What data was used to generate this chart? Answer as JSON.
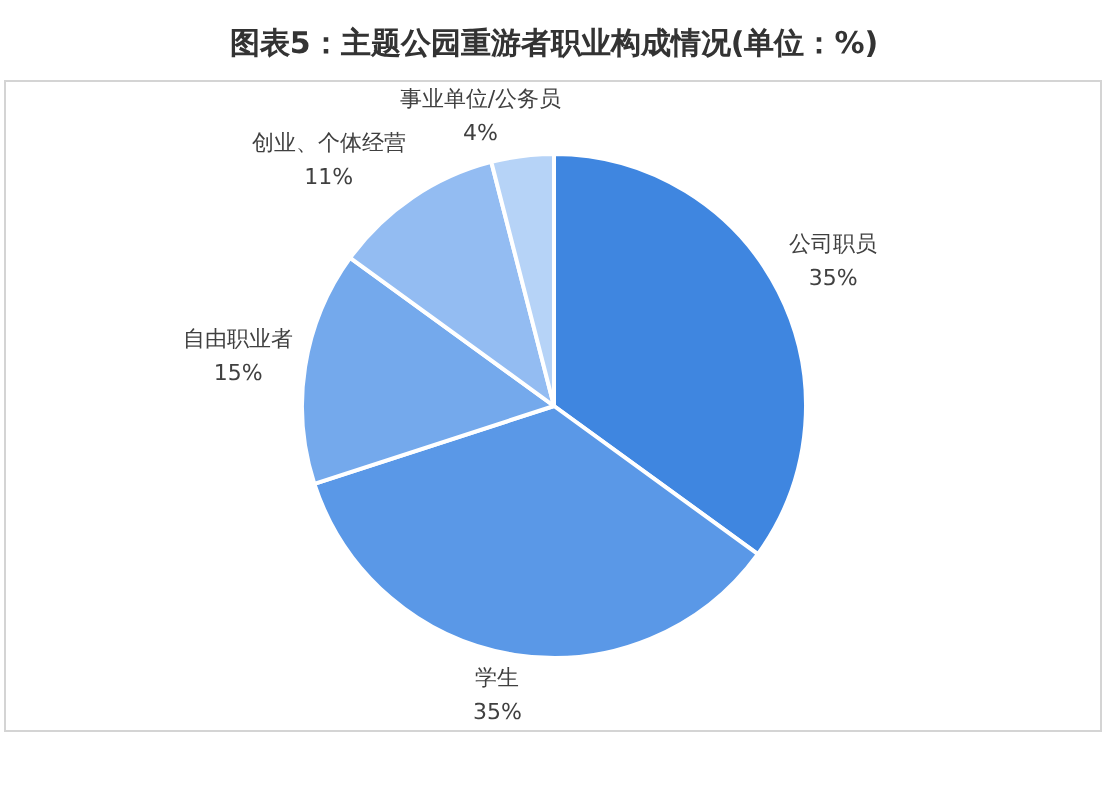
{
  "chart_data": {
    "type": "pie",
    "title": "图表5：主题公园重游者职业构成情况(单位：%)",
    "categories": [
      "公司职员",
      "学生",
      "自由职业者",
      "创业、个体经营",
      "事业单位/公务员"
    ],
    "values": [
      35,
      35,
      15,
      11,
      4
    ],
    "value_labels": [
      "35%",
      "35%",
      "15%",
      "11%",
      "4%"
    ],
    "colors": [
      "#3f86e0",
      "#5a98e7",
      "#74a9ec",
      "#93bcf2",
      "#b6d3f7"
    ]
  }
}
